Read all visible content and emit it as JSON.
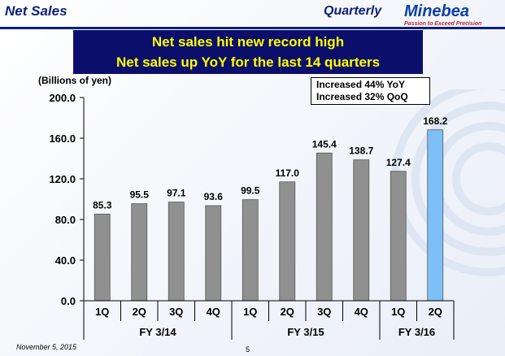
{
  "header": {
    "title": "Net Sales",
    "section": "Quarterly",
    "logo_text": "Minebea",
    "tagline": "Passion to Exceed Precision"
  },
  "banner": {
    "line1": "Net sales hit new record high",
    "line2": "Net sales up YoY for the last 14 quarters"
  },
  "note": {
    "line1": "Increased  44% YoY",
    "line2": "Increased  32% QoQ"
  },
  "footer": {
    "date": "November 5, 2015",
    "page": "5"
  },
  "colors": {
    "bar": "#909090",
    "highlight": "#7fbff7",
    "banner_bg": "#0b0f6b",
    "banner_text": "#ffff00",
    "title": "#0b1f7a"
  },
  "chart_data": {
    "type": "bar",
    "ylabel": "(Billions of yen)",
    "ylim": [
      0,
      200
    ],
    "yticks": [
      "0.0",
      "40.0",
      "80.0",
      "120.0",
      "160.0",
      "200.0"
    ],
    "categories": [
      "1Q",
      "2Q",
      "3Q",
      "4Q",
      "1Q",
      "2Q",
      "3Q",
      "4Q",
      "1Q",
      "2Q"
    ],
    "groups": [
      {
        "label": "FY 3/14",
        "count": 4
      },
      {
        "label": "FY 3/15",
        "count": 4
      },
      {
        "label": "FY 3/16",
        "count": 2
      }
    ],
    "values": [
      85.3,
      95.5,
      97.1,
      93.6,
      99.5,
      117.0,
      145.4,
      138.7,
      127.4,
      168.2
    ],
    "data_labels": [
      "85.3",
      "95.5",
      "97.1",
      "93.6",
      "99.5",
      "117.0",
      "145.4",
      "138.7",
      "127.4",
      "168.2"
    ],
    "highlight_index": 9,
    "grid": false
  }
}
